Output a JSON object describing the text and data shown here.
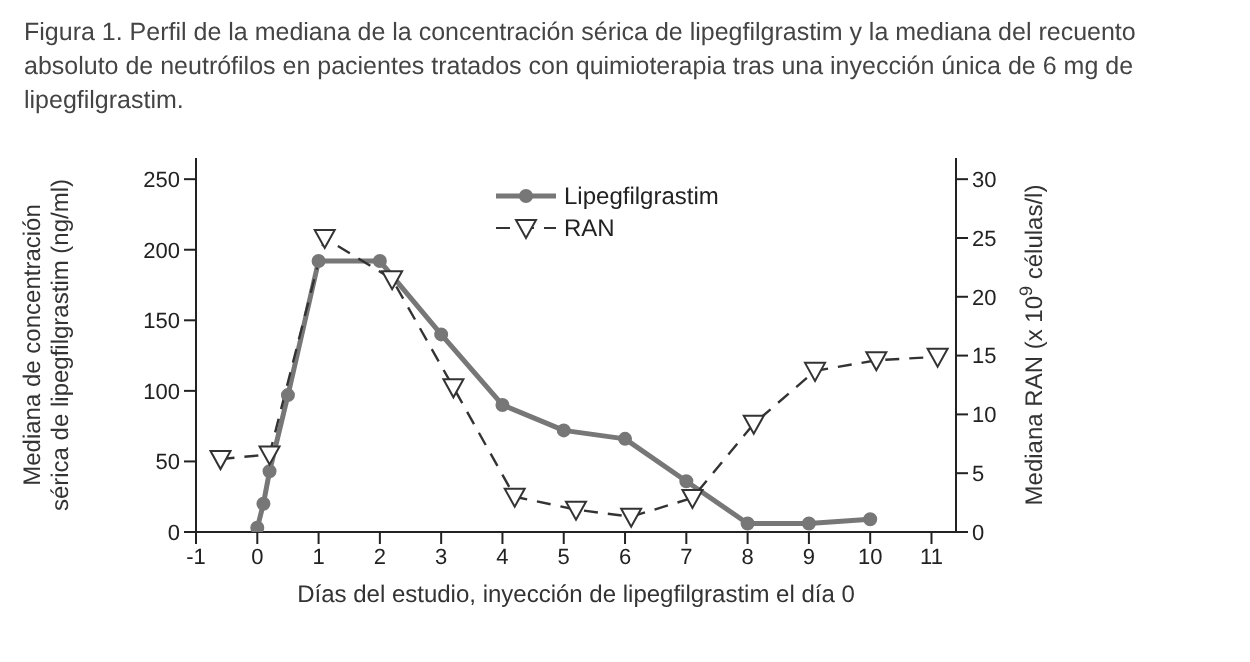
{
  "chart_data": {
    "type": "line",
    "title": "Figura 1. Perfil de la mediana de la concentración sérica de lipegfilgrastim y la mediana del recuento absoluto de neutrófilos en pacientes tratados con quimioterapia tras una inyección única de 6 mg de lipegfilgrastim.",
    "xlabel": "Días del estudio, inyección de lipegfilgrastim el día 0",
    "ylabel": "Mediana de concentración sérica de lipegfilgrastim (ng/ml)",
    "y2label": "Mediana RAN (x 10$^{9}$ células/l)",
    "xlim": [
      -1,
      11.4
    ],
    "xticks": [
      -1,
      0,
      1,
      2,
      3,
      4,
      5,
      6,
      7,
      8,
      9,
      10,
      11
    ],
    "ylim": [
      0,
      265
    ],
    "yticks": [
      0,
      50,
      100,
      150,
      200,
      250
    ],
    "y2lim": [
      0,
      31.8
    ],
    "y2ticks": [
      0,
      5,
      10,
      15,
      20,
      25,
      30
    ],
    "series": [
      {
        "name": "Lipegfilgrastim",
        "color": "#777777",
        "marker": "circle",
        "line_style": "solid",
        "x": [
          0,
          0.1,
          0.2,
          0.5,
          1,
          2,
          3,
          4,
          5,
          6,
          7,
          8,
          9,
          10
        ],
        "values": [
          3,
          20,
          43,
          97,
          192,
          192,
          140,
          90,
          72,
          66,
          36,
          6,
          6,
          9
        ]
      },
      {
        "name": "RAN",
        "color": "#333333",
        "marker": "triangle",
        "line_style": "dashed",
        "axis": "y2",
        "x": [
          -0.6,
          0.2,
          1.1,
          2.2,
          3.2,
          4.2,
          5.2,
          6.1,
          7.1,
          8.1,
          9.1,
          10.1,
          11.1
        ],
        "values": [
          6.2,
          6.6,
          25,
          21.5,
          12.3,
          3.0,
          1.9,
          1.3,
          2.9,
          9.2,
          13.7,
          14.6,
          14.9
        ]
      }
    ],
    "grid": false,
    "legend": "top right"
  }
}
